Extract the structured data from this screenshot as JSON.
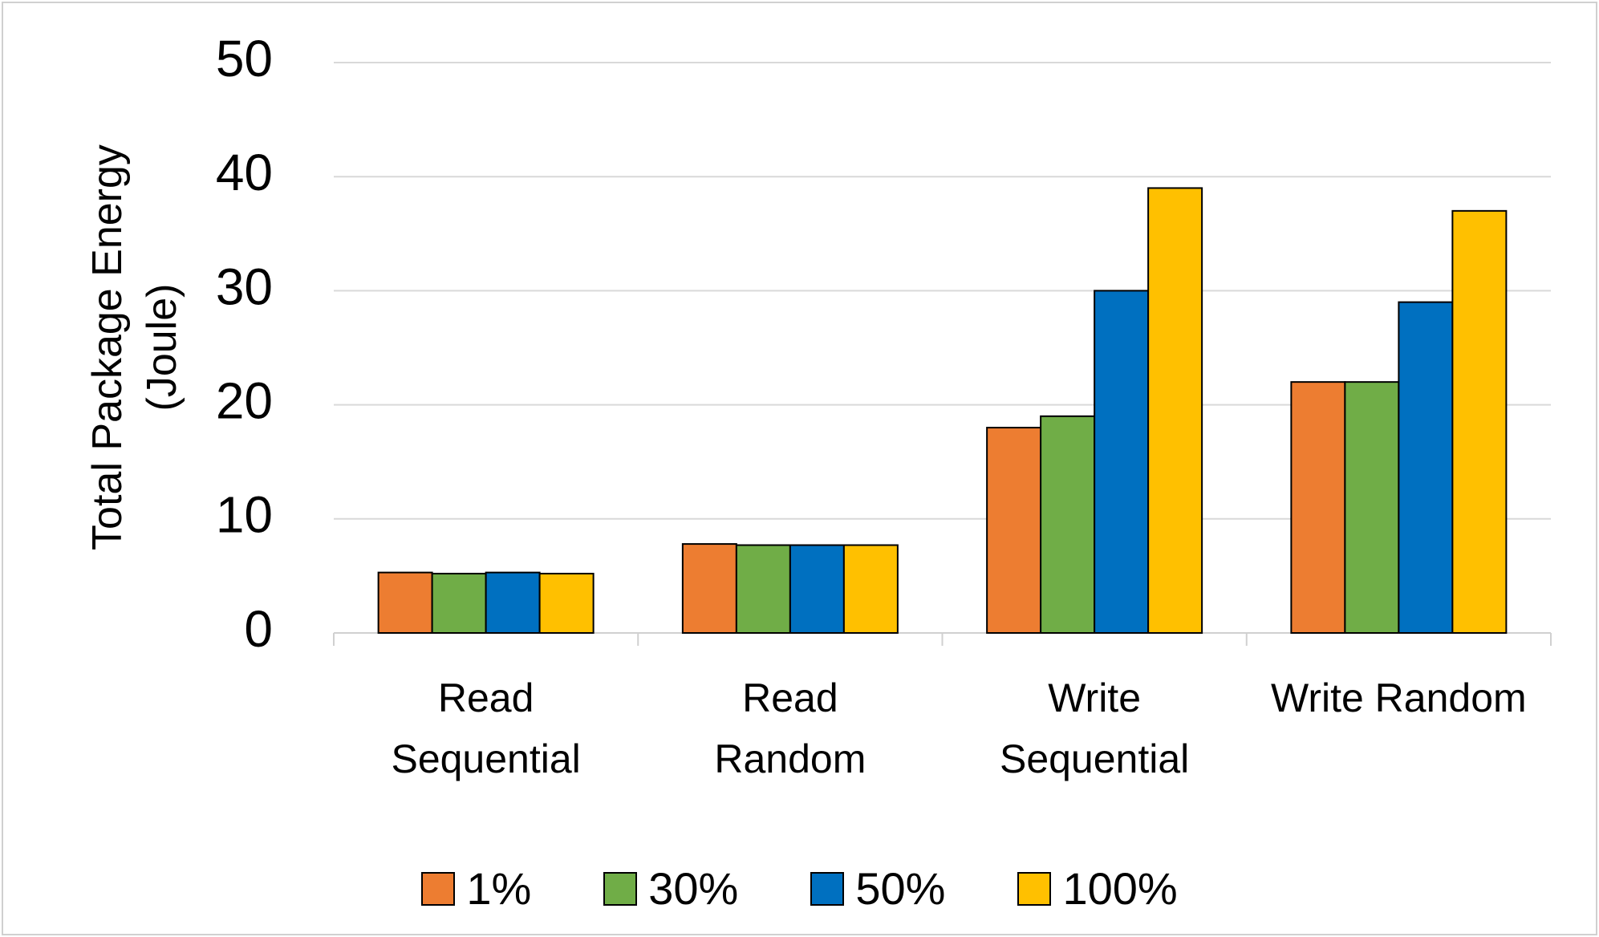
{
  "chart_data": {
    "type": "bar",
    "y_label": "Total Package Energy (Joule)",
    "categories": [
      "Read Sequential",
      "Read Random",
      "Write Sequential",
      "Write Random"
    ],
    "series": [
      {
        "name": "1%",
        "color": "#ed7d31",
        "values": [
          5.3,
          7.8,
          18,
          22
        ]
      },
      {
        "name": "30%",
        "color": "#70ad47",
        "values": [
          5.2,
          7.7,
          19,
          22
        ]
      },
      {
        "name": "50%",
        "color": "#0070c0",
        "values": [
          5.3,
          7.7,
          30,
          29
        ]
      },
      {
        "name": "100%",
        "color": "#ffc000",
        "values": [
          5.2,
          7.7,
          39,
          37
        ]
      }
    ],
    "ylim": [
      0,
      50
    ],
    "yticks": [
      0,
      10,
      20,
      30,
      40,
      50
    ],
    "grid": true,
    "legend": "bottom"
  }
}
